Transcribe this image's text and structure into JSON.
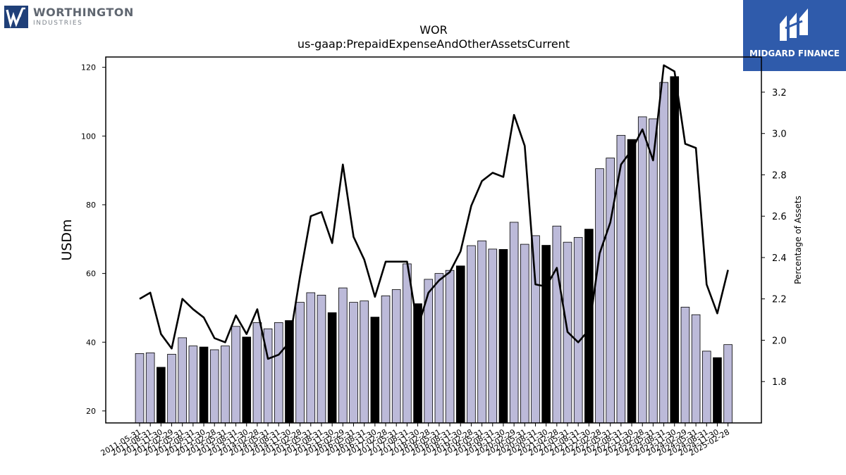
{
  "logos": {
    "left": {
      "name": "WORTHINGTON",
      "sub": "INDUSTRIES"
    },
    "right": {
      "name": "MIDGARD FINANCE"
    }
  },
  "chart_data": {
    "type": "bar",
    "title": "WOR",
    "subtitle": "us-gaap:PrepaidExpenseAndOtherAssetsCurrent",
    "ylabel": "USDm",
    "y2label": "Percentage of Assets",
    "ylim": [
      16.5,
      123
    ],
    "y2lim": [
      1.6,
      3.37
    ],
    "yticks": [
      20,
      40,
      60,
      80,
      100,
      120
    ],
    "y2ticks": [
      "1.8",
      "2.0",
      "2.2",
      "2.4",
      "2.6",
      "2.8",
      "3.0",
      "3.2"
    ],
    "colors": {
      "bar": "#bcbad9",
      "highlight": "#000000",
      "line": "#000000"
    },
    "categories": [
      "2011-05-31",
      "2011-08-31",
      "2011-11-30",
      "2012-02-29",
      "2012-05-31",
      "2012-08-31",
      "2012-11-30",
      "2013-02-28",
      "2013-05-31",
      "2013-08-31",
      "2013-11-30",
      "2014-02-28",
      "2014-05-31",
      "2014-08-31",
      "2014-11-30",
      "2015-02-28",
      "2015-05-31",
      "2015-08-31",
      "2015-11-30",
      "2016-02-29",
      "2016-05-31",
      "2016-08-31",
      "2016-11-30",
      "2017-02-28",
      "2017-05-31",
      "2017-08-31",
      "2017-11-30",
      "2018-02-28",
      "2018-05-31",
      "2018-08-31",
      "2018-11-30",
      "2019-02-28",
      "2019-05-31",
      "2019-08-31",
      "2019-11-30",
      "2020-02-29",
      "2020-05-31",
      "2020-08-31",
      "2020-11-30",
      "2021-02-28",
      "2021-05-31",
      "2021-08-31",
      "2021-11-30",
      "2022-02-28",
      "2022-05-31",
      "2022-08-31",
      "2022-11-30",
      "2023-02-28",
      "2023-05-31",
      "2023-08-31",
      "2023-11-30",
      "2024-02-29",
      "2024-05-31",
      "2024-08-31",
      "2024-11-30",
      "2025-02-28"
    ],
    "values": [
      36.7,
      36.9,
      32.7,
      36.5,
      41.3,
      38.9,
      38.6,
      37.8,
      38.9,
      44.6,
      41.5,
      45.7,
      43.9,
      45.7,
      46.3,
      51.6,
      54.4,
      53.7,
      48.6,
      55.8,
      51.6,
      52.0,
      47.3,
      53.5,
      55.3,
      62.8,
      51.2,
      58.3,
      60.0,
      60.9,
      62.2,
      68.1,
      69.5,
      67.1,
      67.0,
      74.9,
      68.5,
      71.0,
      68.2,
      73.8,
      69.1,
      70.5,
      72.9,
      90.5,
      93.6,
      100.2,
      99.0,
      105.6,
      105.0,
      115.6,
      117.3,
      50.2,
      48.0,
      37.4,
      35.5,
      39.3
    ],
    "highlight": [
      false,
      false,
      true,
      false,
      false,
      false,
      true,
      false,
      false,
      false,
      true,
      false,
      false,
      false,
      true,
      false,
      false,
      false,
      true,
      false,
      false,
      false,
      true,
      false,
      false,
      false,
      true,
      false,
      false,
      false,
      true,
      false,
      false,
      false,
      true,
      false,
      false,
      false,
      true,
      false,
      false,
      false,
      true,
      false,
      false,
      false,
      true,
      false,
      false,
      false,
      true,
      false,
      false,
      false,
      true,
      false
    ],
    "series": [
      {
        "name": "Percentage of Assets",
        "axis": "right",
        "values": [
          2.2,
          2.23,
          2.03,
          1.96,
          2.2,
          2.15,
          2.11,
          2.01,
          1.99,
          2.12,
          2.03,
          2.15,
          1.91,
          1.93,
          1.99,
          2.31,
          2.6,
          2.62,
          2.47,
          2.85,
          2.5,
          2.39,
          2.21,
          2.38,
          2.38,
          2.38,
          2.06,
          2.23,
          2.29,
          2.33,
          2.43,
          2.65,
          2.77,
          2.81,
          2.79,
          3.09,
          2.94,
          2.27,
          2.26,
          2.35,
          2.04,
          1.99,
          2.05,
          2.42,
          2.57,
          2.85,
          2.92,
          3.02,
          2.87,
          3.33,
          3.3,
          2.95,
          2.93,
          2.27,
          2.13,
          2.34
        ]
      }
    ]
  }
}
